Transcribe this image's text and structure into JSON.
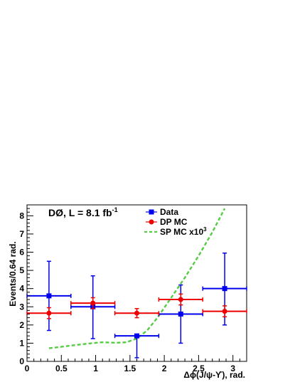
{
  "chart_data": {
    "type": "scatter",
    "annotation": {
      "text": "DØ, L = 8.1 fb",
      "superscript": "-1"
    },
    "xlabel": "Δϕ(J/ψ-ϒ), rad.",
    "ylabel": "Events/0.64 rad.",
    "xlim": [
      0,
      3.2
    ],
    "ylim": [
      0,
      8.6
    ],
    "xticks": [
      "0",
      "0.5",
      "1",
      "1.5",
      "2",
      "2.5",
      "3"
    ],
    "yticks": [
      "0",
      "1",
      "2",
      "3",
      "4",
      "5",
      "6",
      "7",
      "8"
    ],
    "legend_position": "top-center",
    "series": [
      {
        "name": "Data",
        "color": "#0000ee",
        "marker": "square",
        "points": [
          {
            "x": 0.32,
            "y": 3.6,
            "xerr": 0.32,
            "ylo": 1.7,
            "yhi": 5.5
          },
          {
            "x": 0.96,
            "y": 3.0,
            "xerr": 0.32,
            "ylo": 1.25,
            "yhi": 4.7
          },
          {
            "x": 1.6,
            "y": 1.4,
            "xerr": 0.32,
            "ylo": 0.2,
            "yhi": 1.4
          },
          {
            "x": 2.24,
            "y": 2.6,
            "xerr": 0.32,
            "ylo": 1.0,
            "yhi": 4.2
          },
          {
            "x": 2.88,
            "y": 4.0,
            "xerr": 0.32,
            "ylo": 2.0,
            "yhi": 5.95
          }
        ]
      },
      {
        "name": "DP MC",
        "color": "#ee0000",
        "marker": "circle",
        "points": [
          {
            "x": 0.32,
            "y": 2.65,
            "xerr": 0.32,
            "ylo": 2.35,
            "yhi": 2.95
          },
          {
            "x": 0.96,
            "y": 3.2,
            "xerr": 0.32,
            "ylo": 2.9,
            "yhi": 3.5
          },
          {
            "x": 1.6,
            "y": 2.65,
            "xerr": 0.32,
            "ylo": 2.4,
            "yhi": 2.9
          },
          {
            "x": 2.24,
            "y": 3.4,
            "xerr": 0.32,
            "ylo": 3.1,
            "yhi": 3.7
          },
          {
            "x": 2.88,
            "y": 2.75,
            "xerr": 0.32,
            "ylo": 2.45,
            "yhi": 3.05
          }
        ]
      },
      {
        "name": "SP MC x10",
        "name_superscript": "3",
        "color": "#55cc44",
        "line_style": "dashed",
        "x": [
          0.32,
          0.6,
          0.9,
          1.1,
          1.3,
          1.45,
          1.6,
          1.75,
          1.9,
          2.1,
          2.3,
          2.5,
          2.7,
          2.88
        ],
        "y": [
          0.72,
          0.85,
          0.98,
          1.05,
          1.02,
          1.05,
          1.25,
          1.7,
          2.4,
          3.5,
          4.6,
          5.8,
          7.1,
          8.4
        ]
      }
    ]
  }
}
